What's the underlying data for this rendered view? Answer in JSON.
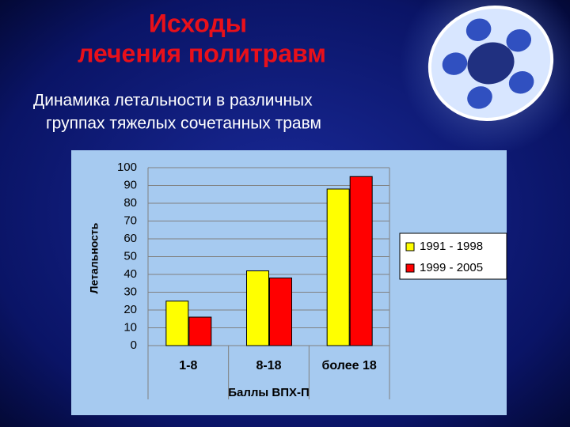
{
  "slide": {
    "title": [
      "Исходы",
      "лечения политравм"
    ],
    "subtitle": [
      "Динамика летальности в различных",
      "группах тяжелых сочетанных травм"
    ]
  },
  "chart_data": {
    "type": "bar",
    "categories": [
      "1-8",
      "8-18",
      "более 18"
    ],
    "series": [
      {
        "name": "1991 - 1998",
        "color": "#ffff00",
        "values": [
          25,
          42,
          88
        ]
      },
      {
        "name": "1999 - 2005",
        "color": "#ff0000",
        "values": [
          16,
          38,
          95
        ]
      }
    ],
    "y_label": "Летальность",
    "x_label": "Баллы ВПХ-П",
    "ylim": [
      0,
      100
    ],
    "yticks": [
      0,
      10,
      20,
      30,
      40,
      50,
      60,
      70,
      80,
      90,
      100
    ],
    "grid": true,
    "legend": "right"
  }
}
